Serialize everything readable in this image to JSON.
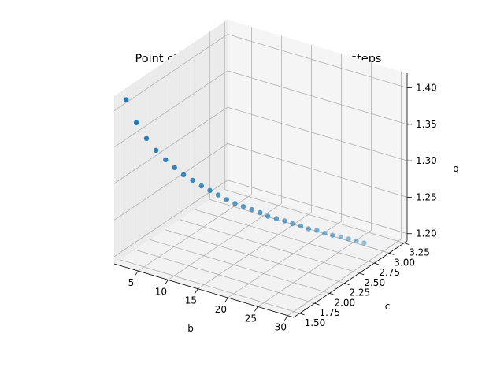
{
  "chart_data": {
    "type": "scatter3d",
    "title": "Point cloud for rotation_hp_harmonic_steps",
    "xlabel": "b",
    "ylabel": "c",
    "zlabel": "q",
    "xlim": [
      1,
      31
    ],
    "ylim": [
      1.4,
      3.3
    ],
    "zlim": [
      1.19,
      1.42
    ],
    "xticks": [
      5,
      10,
      15,
      20,
      25,
      30
    ],
    "yticks": [
      1.5,
      1.75,
      2.0,
      2.25,
      2.5,
      2.75,
      3.0,
      3.25
    ],
    "zticks": [
      1.2,
      1.25,
      1.3,
      1.35,
      1.4
    ],
    "xtick_labels": [
      "5",
      "10",
      "15",
      "20",
      "25",
      "30"
    ],
    "ytick_labels": [
      "1.50",
      "1.75",
      "2.00",
      "2.25",
      "2.50",
      "2.75",
      "3.00",
      "3.25"
    ],
    "ztick_labels": [
      "1.20",
      "1.25",
      "1.30",
      "1.35",
      "1.40"
    ],
    "grid": true,
    "point_color": "#1f77b4",
    "series": [
      {
        "points": [
          [
            2,
            1.5,
            1.412
          ],
          [
            3,
            1.57,
            1.379
          ],
          [
            4,
            1.64,
            1.356
          ],
          [
            5,
            1.7,
            1.339
          ],
          [
            6,
            1.76,
            1.325
          ],
          [
            7,
            1.81,
            1.314
          ],
          [
            8,
            1.86,
            1.304
          ],
          [
            9,
            1.91,
            1.296
          ],
          [
            10,
            1.96,
            1.288
          ],
          [
            11,
            2.0,
            1.282
          ],
          [
            12,
            2.04,
            1.276
          ],
          [
            13,
            2.08,
            1.27
          ],
          [
            14,
            2.12,
            1.265
          ],
          [
            15,
            2.16,
            1.261
          ],
          [
            16,
            2.2,
            1.257
          ],
          [
            17,
            2.24,
            1.253
          ],
          [
            18,
            2.27,
            1.249
          ],
          [
            19,
            2.31,
            1.246
          ],
          [
            20,
            2.35,
            1.243
          ],
          [
            21,
            2.38,
            1.24
          ],
          [
            22,
            2.42,
            1.237
          ],
          [
            23,
            2.45,
            1.234
          ],
          [
            24,
            2.49,
            1.232
          ],
          [
            25,
            2.52,
            1.229
          ],
          [
            26,
            2.55,
            1.227
          ],
          [
            27,
            2.59,
            1.225
          ],
          [
            28,
            2.62,
            1.223
          ],
          [
            29,
            2.65,
            1.221
          ],
          [
            30,
            2.68,
            1.219
          ]
        ]
      }
    ]
  }
}
